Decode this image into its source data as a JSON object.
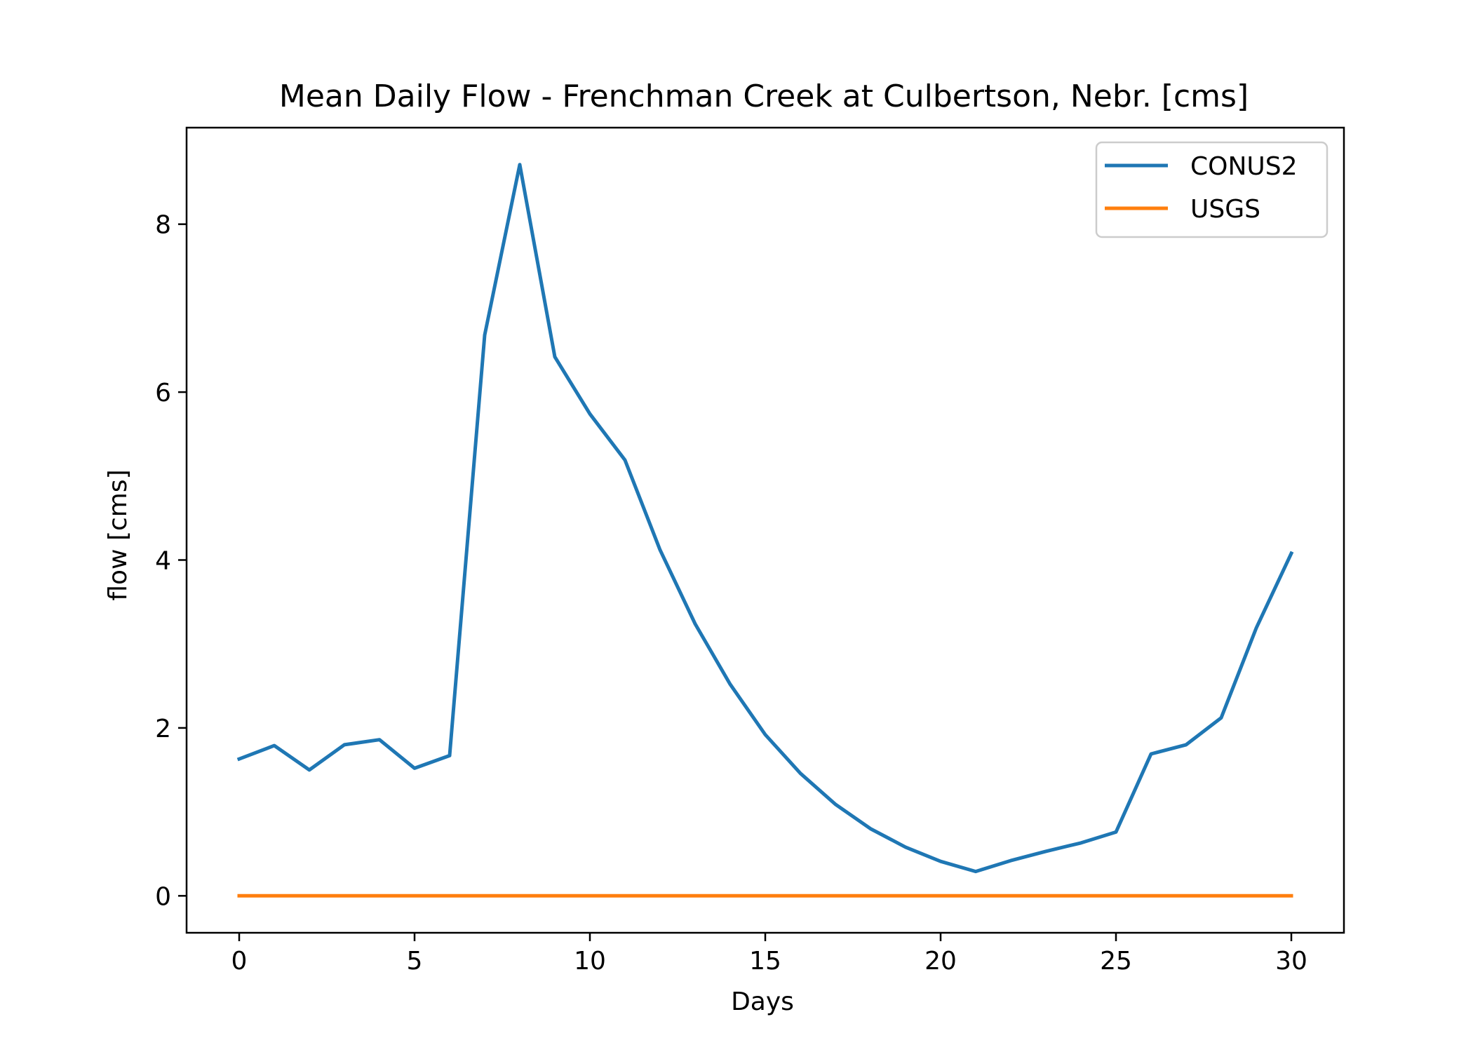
{
  "chart_data": {
    "type": "line",
    "title": "Mean Daily Flow - Frenchman Creek at Culbertson, Nebr. [cms]",
    "xlabel": "Days",
    "ylabel": "flow [cms]",
    "xlim": [
      -1.5,
      31.5
    ],
    "ylim": [
      -0.44,
      9.15
    ],
    "xticks": [
      0,
      5,
      10,
      15,
      20,
      25,
      30
    ],
    "yticks": [
      0,
      2,
      4,
      6,
      8
    ],
    "grid": false,
    "legend_position": "upper right",
    "x": [
      0,
      1,
      2,
      3,
      4,
      5,
      6,
      7,
      8,
      9,
      10,
      11,
      12,
      13,
      14,
      15,
      16,
      17,
      18,
      19,
      20,
      21,
      22,
      23,
      24,
      25,
      26,
      27,
      28,
      29,
      30
    ],
    "series": [
      {
        "name": "CONUS2",
        "color": "#1f77b4",
        "values": [
          1.63,
          1.79,
          1.5,
          1.8,
          1.86,
          1.52,
          1.67,
          6.68,
          8.71,
          6.42,
          5.74,
          5.19,
          4.12,
          3.24,
          2.52,
          1.92,
          1.46,
          1.09,
          0.8,
          0.58,
          0.41,
          0.29,
          0.42,
          0.53,
          0.63,
          0.76,
          1.69,
          1.8,
          2.12,
          3.19,
          4.08
        ]
      },
      {
        "name": "USGS",
        "color": "#ff7f0e",
        "values": [
          0,
          0,
          0,
          0,
          0,
          0,
          0,
          0,
          0,
          0,
          0,
          0,
          0,
          0,
          0,
          0,
          0,
          0,
          0,
          0,
          0,
          0,
          0,
          0,
          0,
          0,
          0,
          0,
          0,
          0,
          0
        ]
      }
    ]
  }
}
